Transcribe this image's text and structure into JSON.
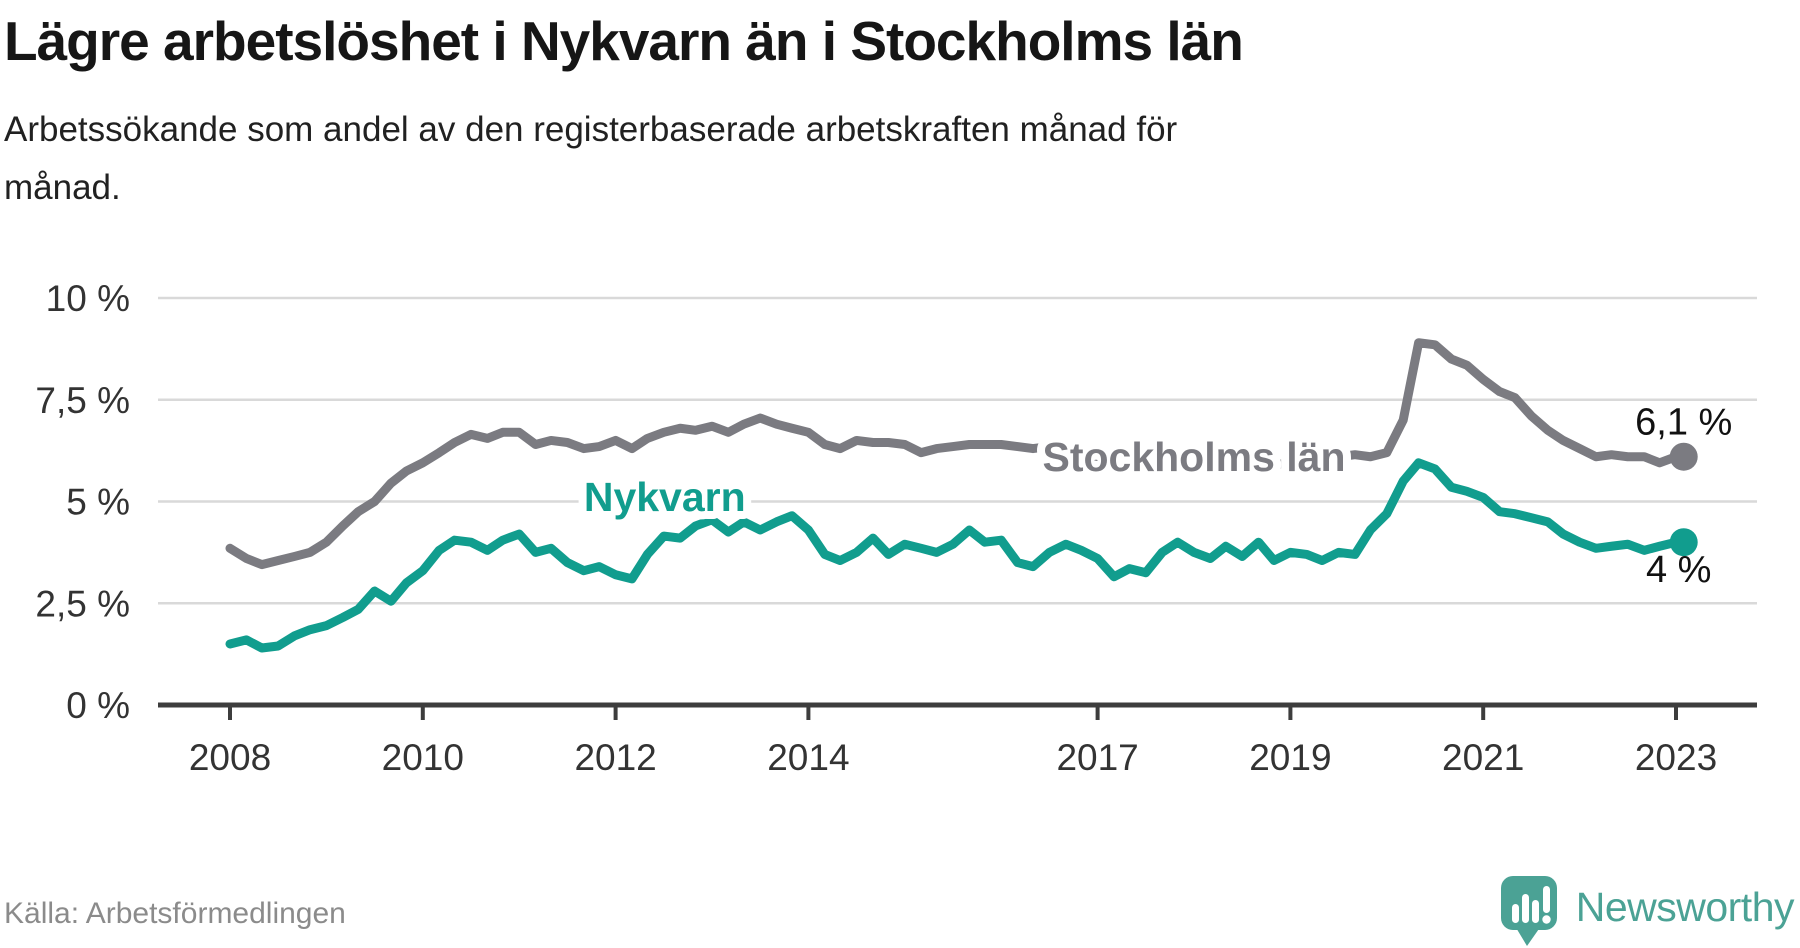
{
  "chart_data": {
    "type": "line",
    "title": "Lägre arbetslöshet i Nykvarn än i Stockholms län",
    "subtitle_lines": [
      "Arbetssökande som andel av den registerbaserade arbetskraften månad för",
      "månad."
    ],
    "source": "Källa: Arbetsförmedlingen",
    "x_unit": "decimal_year",
    "xlim": [
      2007.25,
      2023.85
    ],
    "ylim": [
      0,
      10
    ],
    "grid": "horizontal",
    "legend": "inline-labels",
    "x_ticks": [
      2008,
      2010,
      2012,
      2014,
      2017,
      2019,
      2021,
      2023
    ],
    "y_ticks": [
      0,
      2.5,
      5,
      7.5,
      10
    ],
    "y_tick_labels": [
      "0 %",
      "2,5 %",
      "5 %",
      "7,5 %",
      "10 %"
    ],
    "x": [
      2008,
      2008.17,
      2008.33,
      2008.5,
      2008.67,
      2008.83,
      2009,
      2009.17,
      2009.33,
      2009.5,
      2009.67,
      2009.83,
      2010,
      2010.17,
      2010.33,
      2010.5,
      2010.67,
      2010.83,
      2011,
      2011.17,
      2011.33,
      2011.5,
      2011.67,
      2011.83,
      2012,
      2012.17,
      2012.33,
      2012.5,
      2012.67,
      2012.83,
      2013,
      2013.17,
      2013.33,
      2013.5,
      2013.67,
      2013.83,
      2014,
      2014.17,
      2014.33,
      2014.5,
      2014.67,
      2014.83,
      2015,
      2015.17,
      2015.33,
      2015.5,
      2015.67,
      2015.83,
      2016,
      2016.17,
      2016.33,
      2016.5,
      2016.67,
      2016.83,
      2017,
      2017.17,
      2017.33,
      2017.5,
      2017.67,
      2017.83,
      2018,
      2018.17,
      2018.33,
      2018.5,
      2018.67,
      2018.83,
      2019,
      2019.17,
      2019.33,
      2019.5,
      2019.67,
      2019.83,
      2020,
      2020.17,
      2020.33,
      2020.5,
      2020.67,
      2020.83,
      2021,
      2021.17,
      2021.33,
      2021.5,
      2021.67,
      2021.83,
      2022,
      2022.17,
      2022.33,
      2022.5,
      2022.67,
      2022.83,
      2023,
      2023.08
    ],
    "series": [
      {
        "name": "Stockholms län",
        "color": "#7b7b81",
        "label_pos": [
          2018.0,
          6.09
        ],
        "end_label": "6,1 %",
        "end_value": 6.1,
        "end_label_offset": [
          0,
          -22
        ],
        "values": [
          3.85,
          3.6,
          3.45,
          3.55,
          3.65,
          3.75,
          4.0,
          4.4,
          4.75,
          5.0,
          5.45,
          5.75,
          5.95,
          6.2,
          6.45,
          6.65,
          6.55,
          6.7,
          6.7,
          6.4,
          6.5,
          6.45,
          6.3,
          6.35,
          6.5,
          6.3,
          6.55,
          6.7,
          6.8,
          6.75,
          6.85,
          6.7,
          6.9,
          7.05,
          6.9,
          6.8,
          6.7,
          6.4,
          6.3,
          6.5,
          6.45,
          6.45,
          6.4,
          6.2,
          6.3,
          6.35,
          6.4,
          6.4,
          6.4,
          6.35,
          6.3,
          6.35,
          6.3,
          6.25,
          6.1,
          6.0,
          5.95,
          5.9,
          5.9,
          5.85,
          5.85,
          5.8,
          5.8,
          5.8,
          5.85,
          5.9,
          5.95,
          6.0,
          6.05,
          6.1,
          6.15,
          6.1,
          6.2,
          7.0,
          8.9,
          8.85,
          8.5,
          8.35,
          8.0,
          7.7,
          7.55,
          7.1,
          6.75,
          6.5,
          6.3,
          6.1,
          6.15,
          6.1,
          6.1,
          5.95,
          6.1,
          6.1
        ]
      },
      {
        "name": "Nykvarn",
        "color": "#119d8e",
        "label_pos": [
          2012.51,
          5.11
        ],
        "end_label": "4 %",
        "end_value": 4.0,
        "end_label_offset": [
          -5,
          40
        ],
        "values": [
          1.5,
          1.6,
          1.4,
          1.45,
          1.7,
          1.85,
          1.95,
          2.15,
          2.35,
          2.8,
          2.55,
          3.0,
          3.3,
          3.8,
          4.05,
          4.0,
          3.8,
          4.05,
          4.2,
          3.75,
          3.85,
          3.5,
          3.3,
          3.4,
          3.2,
          3.1,
          3.7,
          4.15,
          4.1,
          4.4,
          4.55,
          4.25,
          4.5,
          4.3,
          4.5,
          4.65,
          4.3,
          3.7,
          3.55,
          3.75,
          4.1,
          3.7,
          3.95,
          3.85,
          3.75,
          3.95,
          4.3,
          4.0,
          4.05,
          3.5,
          3.4,
          3.75,
          3.95,
          3.8,
          3.6,
          3.15,
          3.35,
          3.25,
          3.75,
          4.0,
          3.75,
          3.6,
          3.9,
          3.65,
          4.0,
          3.55,
          3.75,
          3.7,
          3.55,
          3.75,
          3.7,
          4.3,
          4.7,
          5.5,
          5.95,
          5.8,
          5.35,
          5.25,
          5.1,
          4.75,
          4.7,
          4.6,
          4.5,
          4.2,
          4.0,
          3.85,
          3.9,
          3.95,
          3.8,
          3.9,
          4.0,
          4.0
        ]
      }
    ]
  },
  "footer": {
    "brand": "Newsworthy"
  },
  "colors": {
    "background": "#ffffff",
    "grid": "#d9d9d9",
    "axis": "#3d3d3d",
    "tick_label": "#333333",
    "value_label": "#111111",
    "title_text": "#161616",
    "subtitle_text": "#212121",
    "source_text": "#8b8b8b",
    "logo": "#4ba295",
    "stockholm_line": "#7b7b81",
    "nykvarn_line": "#119d8e"
  }
}
